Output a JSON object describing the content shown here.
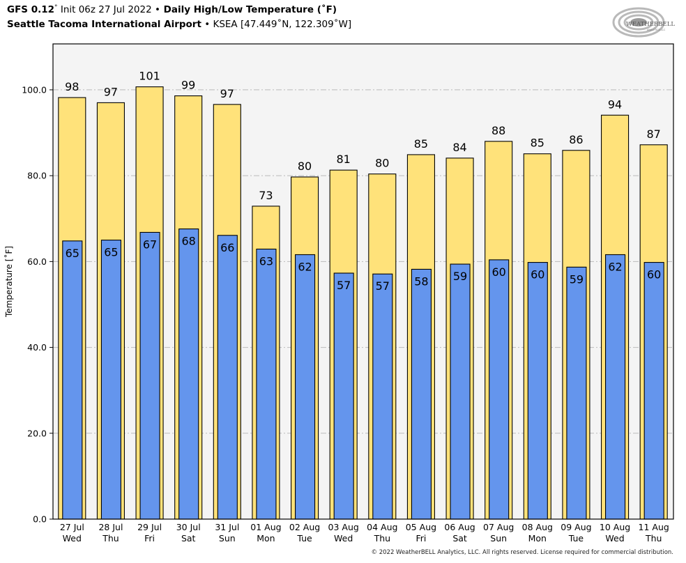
{
  "header": {
    "model": "GFS 0.12",
    "degree_mark": "°",
    "init": " Init 06z 27 Jul 2022 ",
    "bullet": "•",
    "product": " Daily High/Low Temperature (˚F)",
    "station_name": "Seattle Tacoma International Airport",
    "station_id": " KSEA [47.449˚N, 122.309˚W]"
  },
  "logo": {
    "name": "WeatherBELL",
    "text_main": "WEATHERBELL",
    "text_sub": "ANALYTICS LLC"
  },
  "footer": {
    "copyright": "© 2022 WeatherBELL Analytics, LLC. All rights reserved. License required for commercial distribution."
  },
  "colors": {
    "high": "#ffe27a",
    "low": "#6495ed",
    "plot_bg": "#f4f4f4",
    "grid": "#bbbbbb"
  },
  "chart_data": {
    "type": "bar",
    "title": "Daily High/Low Temperature (˚F)",
    "xlabel": "",
    "ylabel": "Temperature [˚F]",
    "ylim": [
      0,
      110.7
    ],
    "yticks": [
      0,
      20,
      40,
      60,
      80,
      100
    ],
    "ytick_labels": [
      "0.0",
      "20.0",
      "40.0",
      "60.0",
      "80.0",
      "100.0"
    ],
    "grid": true,
    "legend": "none",
    "categories": [
      [
        "27 Jul",
        "Wed"
      ],
      [
        "28 Jul",
        "Thu"
      ],
      [
        "29 Jul",
        "Fri"
      ],
      [
        "30 Jul",
        "Sat"
      ],
      [
        "31 Jul",
        "Sun"
      ],
      [
        "01 Aug",
        "Mon"
      ],
      [
        "02 Aug",
        "Tue"
      ],
      [
        "03 Aug",
        "Wed"
      ],
      [
        "04 Aug",
        "Thu"
      ],
      [
        "05 Aug",
        "Fri"
      ],
      [
        "06 Aug",
        "Sat"
      ],
      [
        "07 Aug",
        "Sun"
      ],
      [
        "08 Aug",
        "Mon"
      ],
      [
        "09 Aug",
        "Tue"
      ],
      [
        "10 Aug",
        "Wed"
      ],
      [
        "11 Aug",
        "Thu"
      ]
    ],
    "series": [
      {
        "name": "High",
        "values": [
          98.2,
          97.0,
          100.7,
          98.6,
          96.6,
          72.9,
          79.7,
          81.3,
          80.4,
          84.9,
          84.1,
          88.0,
          85.1,
          85.9,
          94.1,
          87.2
        ],
        "labels": [
          "98",
          "97",
          "101",
          "99",
          "97",
          "73",
          "80",
          "81",
          "80",
          "85",
          "84",
          "88",
          "85",
          "86",
          "94",
          "87"
        ]
      },
      {
        "name": "Low",
        "values": [
          64.8,
          65.0,
          66.8,
          67.6,
          66.1,
          62.9,
          61.6,
          57.3,
          57.1,
          58.2,
          59.4,
          60.4,
          59.8,
          58.7,
          61.6,
          59.8
        ],
        "labels": [
          "65",
          "65",
          "67",
          "68",
          "66",
          "63",
          "62",
          "57",
          "57",
          "58",
          "59",
          "60",
          "60",
          "59",
          "62",
          "60"
        ]
      }
    ]
  }
}
